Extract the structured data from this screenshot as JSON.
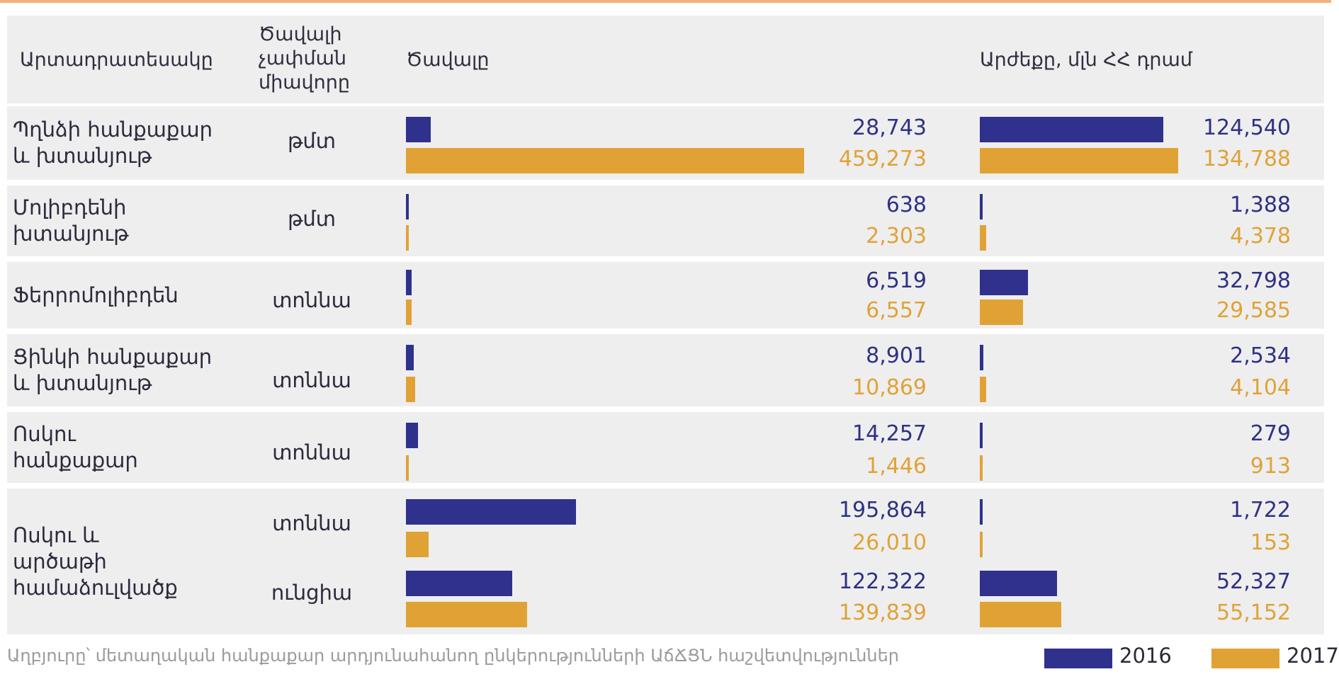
{
  "chart_data": {
    "type": "bar",
    "orientation": "horizontal",
    "headers": {
      "product": "Արտադրատեսակը",
      "unit": "Ծավալի չափման միավորը",
      "volume": "Ծավալը",
      "value": "Արժեքը, մլն ՀՀ դրամ"
    },
    "rows": [
      {
        "category": "Պղնձի հանքաքար և խտանյութ",
        "unit": "թմտ",
        "volume": {
          "2016": 28743,
          "2017": 459273
        },
        "value": {
          "2016": 124540,
          "2017": 134788
        },
        "volume_labels": {
          "2016": "28,743",
          "2017": "459,273"
        },
        "value_labels": {
          "2016": "124,540",
          "2017": "134,788"
        }
      },
      {
        "category": "Մոլիբդենի խտանյութ",
        "unit": "թմտ",
        "volume": {
          "2016": 638,
          "2017": 2303
        },
        "value": {
          "2016": 1388,
          "2017": 4378
        },
        "volume_labels": {
          "2016": "638",
          "2017": "2,303"
        },
        "value_labels": {
          "2016": "1,388",
          "2017": "4,378"
        }
      },
      {
        "category": "Ֆերրոմոլիբդեն",
        "unit": "տոննա",
        "volume": {
          "2016": 6519,
          "2017": 6557
        },
        "value": {
          "2016": 32798,
          "2017": 29585
        },
        "volume_labels": {
          "2016": "6,519",
          "2017": "6,557"
        },
        "value_labels": {
          "2016": "32,798",
          "2017": "29,585"
        }
      },
      {
        "category": "Ցինկի հանքաքար և խտանյութ",
        "unit": "տոննա",
        "volume": {
          "2016": 8901,
          "2017": 10869
        },
        "value": {
          "2016": 2534,
          "2017": 4104
        },
        "volume_labels": {
          "2016": "8,901",
          "2017": "10,869"
        },
        "value_labels": {
          "2016": "2,534",
          "2017": "4,104"
        }
      },
      {
        "category": "Ոսկու հանքաքար",
        "unit": "տոննա",
        "volume": {
          "2016": 14257,
          "2017": 1446
        },
        "value": {
          "2016": 279,
          "2017": 913
        },
        "volume_labels": {
          "2016": "14,257",
          "2017": "1,446"
        },
        "value_labels": {
          "2016": "279",
          "2017": "913"
        }
      },
      {
        "category": "Ոսկու և արծաթի համաձուլվածք",
        "unit": "տոննա",
        "volume": {
          "2016": 195864,
          "2017": 26010
        },
        "value": {
          "2016": 1722,
          "2017": 153
        },
        "volume_labels": {
          "2016": "195,864",
          "2017": "26,010"
        },
        "value_labels": {
          "2016": "1,722",
          "2017": "153"
        }
      },
      {
        "category": "",
        "unit": "ունցիա",
        "volume": {
          "2016": 122322,
          "2017": 139839
        },
        "value": {
          "2016": 52327,
          "2017": 55152
        },
        "volume_labels": {
          "2016": "122,322",
          "2017": "139,839"
        },
        "value_labels": {
          "2016": "52,327",
          "2017": "55,152"
        }
      }
    ],
    "legend": [
      {
        "name": "2016",
        "color": "#2f318c"
      },
      {
        "name": "2017",
        "color": "#e1a235"
      }
    ],
    "legend_position": "bottom-right",
    "source": "Աղբյուրը՝ մետաղական հանքաքար արդյունահանող ընկերությունների ԱճՃՑՆ հաշվետվություններ"
  }
}
